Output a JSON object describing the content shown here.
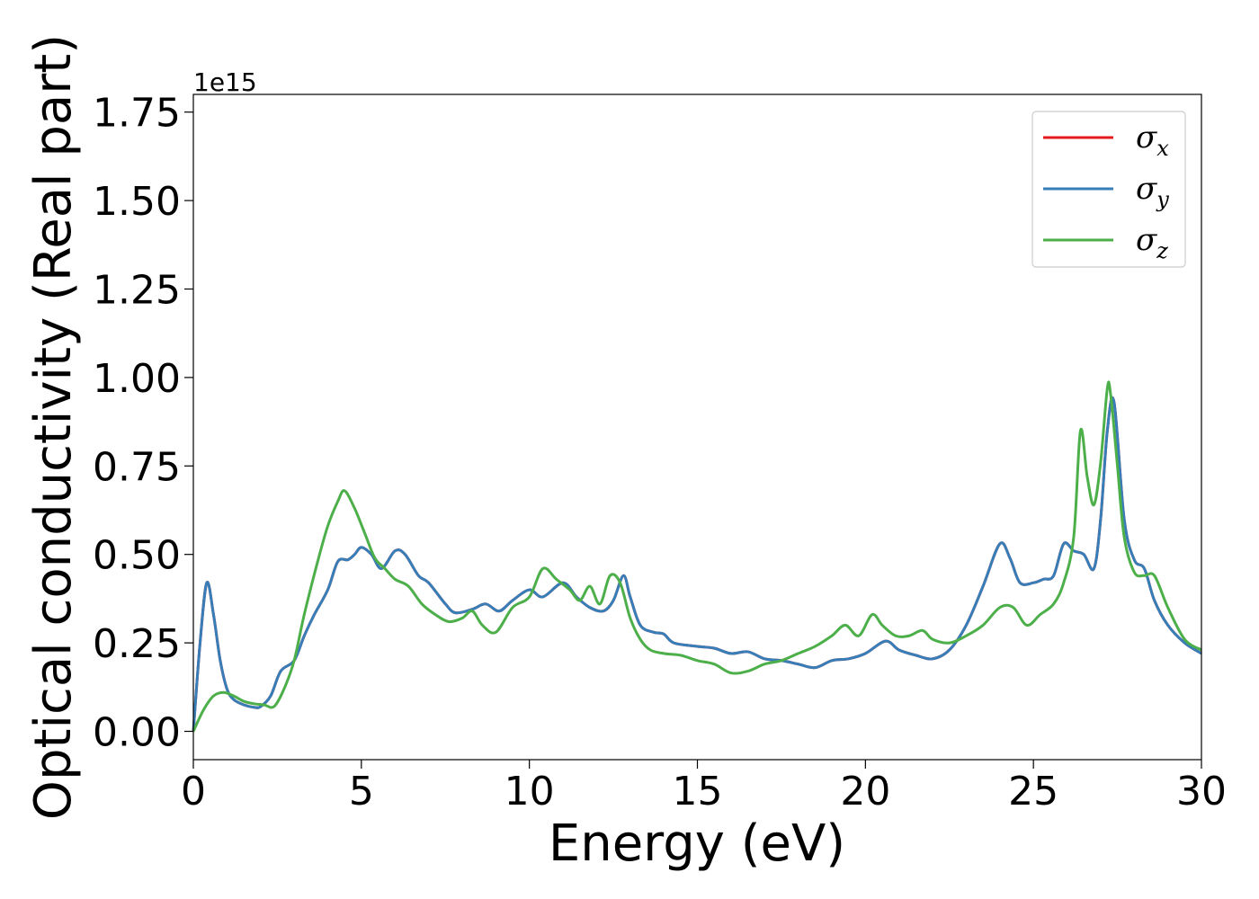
{
  "chart_data": {
    "type": "line",
    "title": "",
    "xlabel": "Energy (eV)",
    "ylabel": "Optical conductivity (Real part)",
    "y_offset_text": "1e15",
    "xlim": [
      0,
      30
    ],
    "ylim": [
      -0.08,
      1.8
    ],
    "xticks": [
      0,
      5,
      10,
      15,
      20,
      25,
      30
    ],
    "xtick_labels": [
      "0",
      "5",
      "10",
      "15",
      "20",
      "25",
      "30"
    ],
    "yticks": [
      0,
      0.25,
      0.5,
      0.75,
      1.0,
      1.25,
      1.5,
      1.75
    ],
    "ytick_labels": [
      "0.00",
      "0.25",
      "0.50",
      "0.75",
      "1.00",
      "1.25",
      "1.50",
      "1.75"
    ],
    "grid": false,
    "legend_position": "top-right",
    "series": [
      {
        "name": "σx",
        "symbol": "σ",
        "subscript": "x",
        "color": "#e41a1c",
        "x": [
          0,
          0.2,
          0.4,
          0.6,
          0.8,
          1.0,
          1.2,
          1.5,
          1.8,
          2.0,
          2.3,
          2.6,
          3.0,
          3.3,
          3.6,
          4.0,
          4.3,
          4.6,
          4.8,
          5.0,
          5.3,
          5.6,
          6.0,
          6.3,
          6.7,
          7.0,
          7.5,
          7.8,
          8.3,
          8.7,
          9.1,
          9.5,
          10.0,
          10.4,
          11.0,
          11.4,
          11.8,
          12.2,
          12.5,
          12.8,
          13.0,
          13.3,
          13.7,
          14.0,
          14.3,
          15.0,
          15.5,
          16.0,
          16.5,
          17.0,
          17.5,
          18.0,
          18.5,
          19.0,
          19.5,
          20.0,
          20.6,
          21.0,
          21.5,
          22.0,
          22.5,
          23.0,
          23.5,
          24.0,
          24.3,
          24.6,
          25.0,
          25.3,
          25.6,
          25.9,
          26.2,
          26.5,
          26.8,
          27.0,
          27.2,
          27.4,
          27.7,
          28.0,
          28.3,
          28.6,
          29.0,
          29.5,
          30.0
        ],
        "y": [
          0.0,
          0.25,
          0.42,
          0.33,
          0.2,
          0.12,
          0.09,
          0.075,
          0.068,
          0.07,
          0.1,
          0.17,
          0.2,
          0.27,
          0.33,
          0.4,
          0.48,
          0.485,
          0.5,
          0.52,
          0.5,
          0.46,
          0.51,
          0.5,
          0.44,
          0.42,
          0.36,
          0.335,
          0.345,
          0.36,
          0.34,
          0.37,
          0.4,
          0.38,
          0.42,
          0.38,
          0.35,
          0.34,
          0.37,
          0.44,
          0.38,
          0.3,
          0.28,
          0.275,
          0.25,
          0.24,
          0.235,
          0.22,
          0.225,
          0.205,
          0.2,
          0.19,
          0.18,
          0.2,
          0.205,
          0.22,
          0.255,
          0.23,
          0.215,
          0.205,
          0.23,
          0.3,
          0.41,
          0.53,
          0.49,
          0.42,
          0.42,
          0.43,
          0.44,
          0.53,
          0.51,
          0.5,
          0.46,
          0.6,
          0.85,
          0.93,
          0.6,
          0.485,
          0.46,
          0.37,
          0.3,
          0.25,
          0.22
        ]
      },
      {
        "name": "σy",
        "symbol": "σ",
        "subscript": "y",
        "color": "#377eb8",
        "x": [
          0,
          0.2,
          0.4,
          0.6,
          0.8,
          1.0,
          1.2,
          1.5,
          1.8,
          2.0,
          2.3,
          2.6,
          3.0,
          3.3,
          3.6,
          4.0,
          4.3,
          4.6,
          4.8,
          5.0,
          5.3,
          5.6,
          6.0,
          6.3,
          6.7,
          7.0,
          7.5,
          7.8,
          8.3,
          8.7,
          9.1,
          9.5,
          10.0,
          10.4,
          11.0,
          11.4,
          11.8,
          12.2,
          12.5,
          12.8,
          13.0,
          13.3,
          13.7,
          14.0,
          14.3,
          15.0,
          15.5,
          16.0,
          16.5,
          17.0,
          17.5,
          18.0,
          18.5,
          19.0,
          19.5,
          20.0,
          20.6,
          21.0,
          21.5,
          22.0,
          22.5,
          23.0,
          23.5,
          24.0,
          24.3,
          24.6,
          25.0,
          25.3,
          25.6,
          25.9,
          26.2,
          26.5,
          26.8,
          27.0,
          27.2,
          27.4,
          27.7,
          28.0,
          28.3,
          28.6,
          29.0,
          29.5,
          30.0
        ],
        "y": [
          0.0,
          0.25,
          0.42,
          0.33,
          0.2,
          0.12,
          0.09,
          0.075,
          0.068,
          0.07,
          0.1,
          0.17,
          0.2,
          0.27,
          0.33,
          0.4,
          0.48,
          0.485,
          0.5,
          0.52,
          0.5,
          0.46,
          0.51,
          0.5,
          0.44,
          0.42,
          0.36,
          0.335,
          0.345,
          0.36,
          0.34,
          0.37,
          0.4,
          0.38,
          0.42,
          0.38,
          0.35,
          0.34,
          0.37,
          0.44,
          0.38,
          0.3,
          0.28,
          0.275,
          0.25,
          0.24,
          0.235,
          0.22,
          0.225,
          0.205,
          0.2,
          0.19,
          0.18,
          0.2,
          0.205,
          0.22,
          0.255,
          0.23,
          0.215,
          0.205,
          0.23,
          0.3,
          0.41,
          0.53,
          0.49,
          0.42,
          0.42,
          0.43,
          0.44,
          0.53,
          0.51,
          0.5,
          0.46,
          0.6,
          0.85,
          0.93,
          0.6,
          0.485,
          0.46,
          0.37,
          0.3,
          0.25,
          0.22
        ]
      },
      {
        "name": "σz",
        "symbol": "σ",
        "subscript": "z",
        "color": "#4daf4a",
        "x": [
          0,
          0.3,
          0.6,
          0.9,
          1.2,
          1.5,
          1.8,
          2.1,
          2.4,
          2.7,
          3.0,
          3.3,
          3.7,
          4.0,
          4.3,
          4.5,
          4.8,
          5.1,
          5.4,
          5.7,
          6.0,
          6.4,
          6.8,
          7.2,
          7.6,
          8.0,
          8.3,
          8.6,
          9.0,
          9.5,
          10.0,
          10.4,
          10.8,
          11.2,
          11.5,
          11.8,
          12.1,
          12.4,
          12.7,
          13.0,
          13.3,
          13.6,
          14.0,
          14.5,
          15.0,
          15.5,
          16.0,
          16.5,
          17.0,
          17.5,
          18.0,
          18.5,
          19.0,
          19.4,
          19.8,
          20.2,
          20.5,
          20.9,
          21.3,
          21.7,
          22.0,
          22.5,
          23.0,
          23.5,
          24.0,
          24.4,
          24.8,
          25.2,
          25.6,
          25.9,
          26.2,
          26.4,
          26.6,
          26.8,
          27.0,
          27.2,
          27.3,
          27.5,
          27.7,
          28.0,
          28.3,
          28.6,
          29.0,
          29.5,
          30.0
        ],
        "y": [
          0.0,
          0.06,
          0.1,
          0.11,
          0.1,
          0.085,
          0.078,
          0.075,
          0.07,
          0.12,
          0.2,
          0.33,
          0.48,
          0.58,
          0.65,
          0.68,
          0.63,
          0.56,
          0.49,
          0.46,
          0.43,
          0.41,
          0.36,
          0.33,
          0.31,
          0.32,
          0.34,
          0.3,
          0.28,
          0.35,
          0.38,
          0.46,
          0.43,
          0.4,
          0.37,
          0.41,
          0.36,
          0.44,
          0.42,
          0.32,
          0.26,
          0.23,
          0.22,
          0.215,
          0.2,
          0.19,
          0.165,
          0.17,
          0.19,
          0.2,
          0.22,
          0.24,
          0.27,
          0.3,
          0.27,
          0.33,
          0.3,
          0.27,
          0.27,
          0.285,
          0.26,
          0.25,
          0.27,
          0.3,
          0.35,
          0.35,
          0.3,
          0.33,
          0.36,
          0.42,
          0.55,
          0.85,
          0.72,
          0.64,
          0.76,
          0.97,
          0.95,
          0.75,
          0.55,
          0.45,
          0.44,
          0.44,
          0.35,
          0.26,
          0.23
        ]
      }
    ]
  }
}
